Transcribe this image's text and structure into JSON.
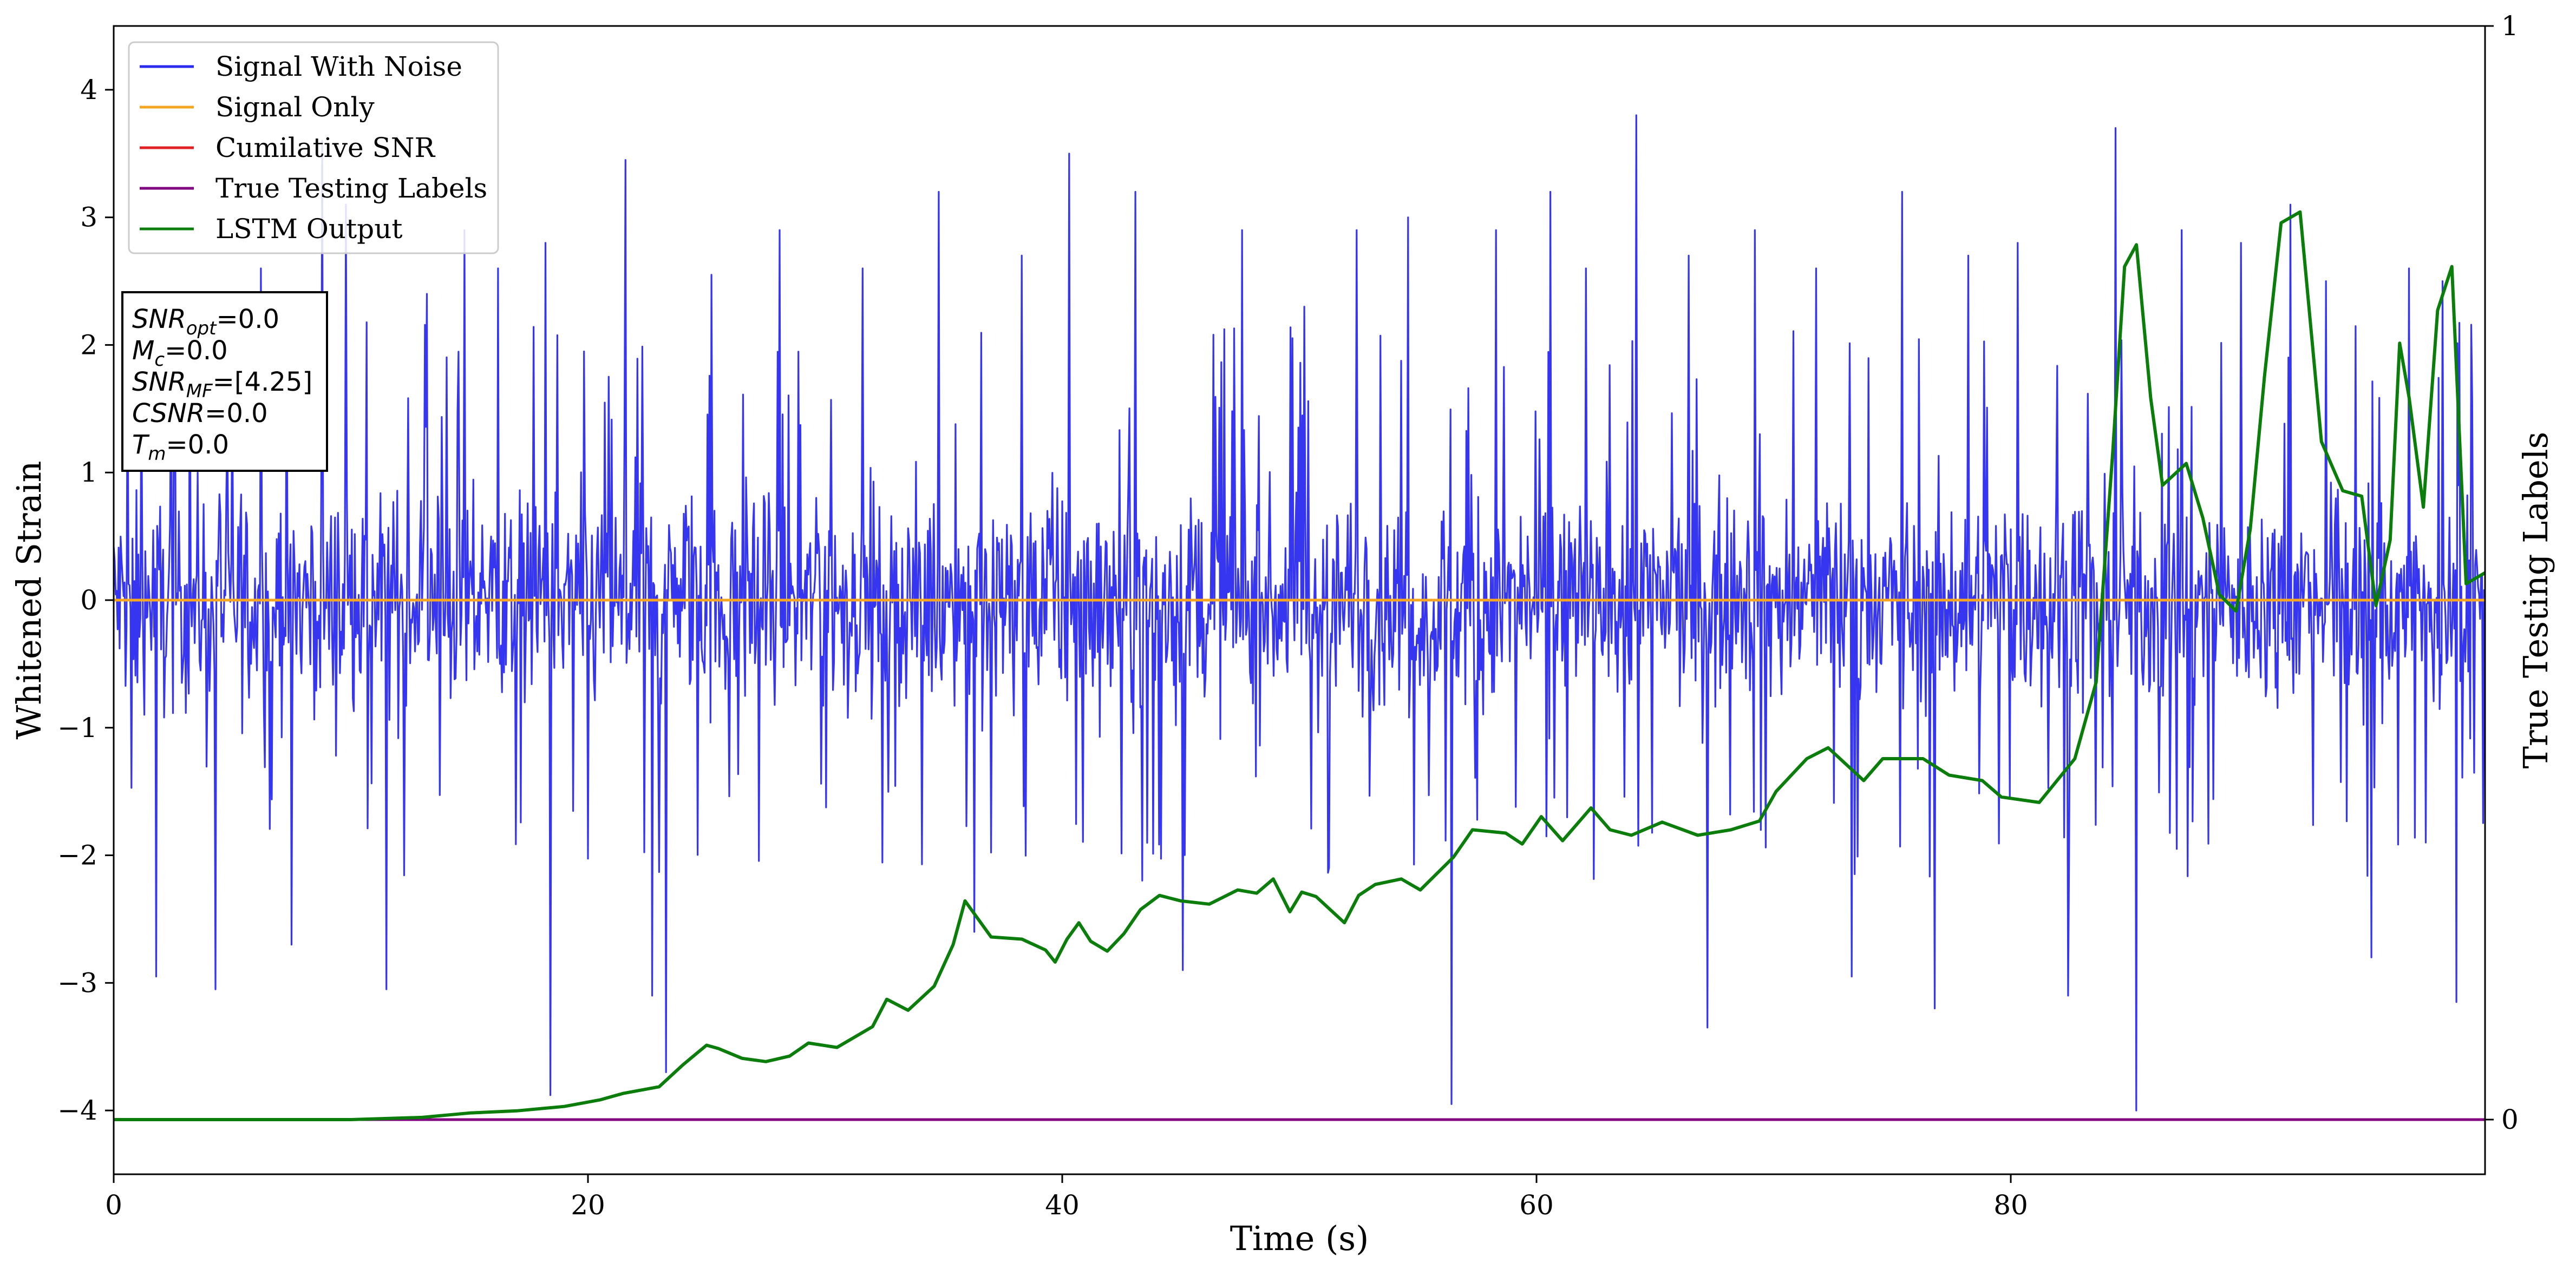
{
  "chart_data": {
    "type": "line",
    "xlabel": "Time (s)",
    "ylabel": "Whitened Strain",
    "ylabel_right": "True Testing Labels",
    "xlim": [
      0,
      100
    ],
    "ylim": [
      -4.5,
      4.5
    ],
    "ylim_right": [
      -0.05,
      1.0
    ],
    "x_ticks": [
      0,
      20,
      40,
      60,
      80
    ],
    "y_ticks": [
      -4,
      -3,
      -2,
      -1,
      0,
      1,
      2,
      3,
      4
    ],
    "y_ticks_right": [
      0,
      1
    ],
    "grid": false,
    "legend_position": "top-left",
    "legend": [
      {
        "name": "Signal With Noise",
        "color": "#2b2bf0"
      },
      {
        "name": "Signal Only",
        "color": "#f5a623"
      },
      {
        "name": "Cumilative SNR",
        "color": "#e02020"
      },
      {
        "name": "True Testing Labels",
        "color": "#800080"
      },
      {
        "name": "LSTM Output",
        "color": "#0a7d0a"
      }
    ],
    "info_box": [
      {
        "sym": "SNR",
        "sub": "opt",
        "value": "=0.0"
      },
      {
        "sym": "M",
        "sub": "c",
        "value": "=0.0"
      },
      {
        "sym": "SNR",
        "sub": "MF",
        "value": "=[4.25]"
      },
      {
        "sym": "CSNR",
        "sub": "",
        "value": "=0.0"
      },
      {
        "sym": "T",
        "sub": "m",
        "value": "=0.0"
      }
    ],
    "series": [
      {
        "name": "Signal Only",
        "axis": "left",
        "color": "#f5a623",
        "x": [
          0,
          100
        ],
        "y": [
          0,
          0
        ]
      },
      {
        "name": "True Testing Labels",
        "axis": "right",
        "color": "#800080",
        "x": [
          0,
          100
        ],
        "y": [
          0,
          0
        ]
      },
      {
        "name": "LSTM Output",
        "axis": "right",
        "color": "#0a7d0a",
        "x": [
          0,
          6,
          10,
          13,
          15,
          17,
          19,
          20.5,
          21.5,
          23,
          24,
          25,
          25.5,
          26.5,
          27.5,
          28.5,
          29.3,
          30.5,
          32,
          32.6,
          33.5,
          34.6,
          35.4,
          35.9,
          37,
          38.3,
          39.3,
          39.7,
          40.2,
          40.7,
          41.2,
          41.9,
          42.6,
          43.3,
          44.1,
          45,
          46.2,
          47.4,
          48.2,
          48.9,
          49.6,
          50.1,
          50.7,
          51.9,
          52.5,
          53.2,
          54.3,
          55.1,
          56.5,
          57.3,
          58.7,
          59.4,
          60.2,
          61.1,
          62.3,
          63.1,
          64,
          65.3,
          66.8,
          68.2,
          69.4,
          70.1,
          71.4,
          72.3,
          73.8,
          74.6,
          76.3,
          77.4,
          78.8,
          79.6,
          81.2,
          82.7,
          83.6,
          84.3,
          84.8,
          85.3,
          85.9,
          86.4,
          87.4,
          88.1,
          88.8,
          89.5,
          90.1,
          90.7,
          91.4,
          92.2,
          93.1,
          94,
          94.8,
          95.4,
          96,
          96.4,
          96.8,
          97.4,
          98,
          98.6,
          99.2,
          100
        ],
        "y": [
          0,
          0,
          0,
          0.002,
          0.006,
          0.008,
          0.012,
          0.018,
          0.024,
          0.03,
          0.05,
          0.068,
          0.065,
          0.056,
          0.053,
          0.058,
          0.07,
          0.066,
          0.085,
          0.11,
          0.1,
          0.122,
          0.16,
          0.2,
          0.167,
          0.165,
          0.155,
          0.144,
          0.165,
          0.18,
          0.163,
          0.154,
          0.17,
          0.192,
          0.205,
          0.2,
          0.197,
          0.21,
          0.207,
          0.22,
          0.19,
          0.208,
          0.204,
          0.18,
          0.205,
          0.215,
          0.22,
          0.21,
          0.24,
          0.265,
          0.262,
          0.252,
          0.277,
          0.255,
          0.285,
          0.265,
          0.26,
          0.272,
          0.26,
          0.265,
          0.273,
          0.3,
          0.33,
          0.34,
          0.31,
          0.33,
          0.33,
          0.315,
          0.31,
          0.295,
          0.29,
          0.33,
          0.4,
          0.61,
          0.78,
          0.8,
          0.66,
          0.58,
          0.6,
          0.55,
          0.48,
          0.465,
          0.54,
          0.68,
          0.82,
          0.83,
          0.62,
          0.575,
          0.57,
          0.47,
          0.53,
          0.71,
          0.66,
          0.56,
          0.74,
          0.78,
          0.49,
          0.5
        ]
      }
    ],
    "noise_series": {
      "name": "Signal With Noise",
      "axis": "left",
      "color": "#2b2bf0",
      "typical_range": [
        -1.8,
        2.2
      ],
      "peaks": [
        {
          "x": 0.6,
          "y": 1.9
        },
        {
          "x": 1.8,
          "y": -2.95
        },
        {
          "x": 3.2,
          "y": 2.3
        },
        {
          "x": 4.3,
          "y": -3.05
        },
        {
          "x": 6.2,
          "y": 2.6
        },
        {
          "x": 7.5,
          "y": -2.7
        },
        {
          "x": 8.8,
          "y": 3.6
        },
        {
          "x": 9.8,
          "y": 3.1
        },
        {
          "x": 11.5,
          "y": -3.05
        },
        {
          "x": 13.2,
          "y": 2.4
        },
        {
          "x": 14.8,
          "y": 2.9
        },
        {
          "x": 16.2,
          "y": 2.6
        },
        {
          "x": 18.2,
          "y": 2.8
        },
        {
          "x": 18.4,
          "y": -3.88
        },
        {
          "x": 21.6,
          "y": 3.45
        },
        {
          "x": 22.7,
          "y": -3.1
        },
        {
          "x": 23.3,
          "y": -3.7
        },
        {
          "x": 25.2,
          "y": 2.55
        },
        {
          "x": 28.1,
          "y": 2.9
        },
        {
          "x": 31.6,
          "y": 2.6
        },
        {
          "x": 34.8,
          "y": 3.2
        },
        {
          "x": 36.3,
          "y": -2.6
        },
        {
          "x": 38.3,
          "y": 2.7
        },
        {
          "x": 40.3,
          "y": 3.5
        },
        {
          "x": 43.1,
          "y": 3.2
        },
        {
          "x": 45.1,
          "y": -2.9
        },
        {
          "x": 47.6,
          "y": 2.9
        },
        {
          "x": 50.2,
          "y": 2.3
        },
        {
          "x": 52.4,
          "y": 2.9
        },
        {
          "x": 54.6,
          "y": 3.0
        },
        {
          "x": 56.4,
          "y": -3.95
        },
        {
          "x": 58.3,
          "y": 2.9
        },
        {
          "x": 60.6,
          "y": 3.2
        },
        {
          "x": 62.1,
          "y": 2.6
        },
        {
          "x": 64.2,
          "y": 3.8
        },
        {
          "x": 66.4,
          "y": 2.7
        },
        {
          "x": 67.2,
          "y": -3.35
        },
        {
          "x": 69.2,
          "y": 2.9
        },
        {
          "x": 71.8,
          "y": 2.6
        },
        {
          "x": 73.3,
          "y": -2.95
        },
        {
          "x": 75.4,
          "y": 3.2
        },
        {
          "x": 76.8,
          "y": -3.2
        },
        {
          "x": 78.2,
          "y": 2.7
        },
        {
          "x": 80.3,
          "y": 2.8
        },
        {
          "x": 82.4,
          "y": -3.1
        },
        {
          "x": 84.4,
          "y": 3.7
        },
        {
          "x": 85.3,
          "y": -4.0
        },
        {
          "x": 87.2,
          "y": 2.9
        },
        {
          "x": 89.7,
          "y": 2.8
        },
        {
          "x": 91.8,
          "y": 3.1
        },
        {
          "x": 93.3,
          "y": 2.5
        },
        {
          "x": 95.2,
          "y": -2.8
        },
        {
          "x": 96.8,
          "y": 2.6
        },
        {
          "x": 98.2,
          "y": 2.5
        },
        {
          "x": 98.8,
          "y": -3.15
        }
      ]
    }
  }
}
